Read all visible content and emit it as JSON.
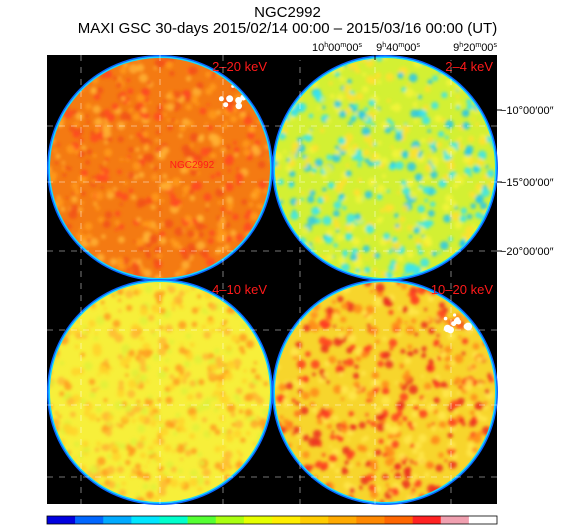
{
  "title": "NGC2992",
  "subtitle": "MAXI GSC 30-days 2015/02/14 00:00 – 2015/03/16 00:00 (UT)",
  "ra_labels": [
    {
      "h": "10",
      "m": "00",
      "s": "00"
    },
    {
      "h": "9",
      "m": "40",
      "s": "00"
    },
    {
      "h": "9",
      "m": "20",
      "s": "00"
    }
  ],
  "dec_labels": [
    "−10°00′00″",
    "−15°00′00″",
    "−20°00′00″"
  ],
  "panels": [
    {
      "band": "2–20 keV",
      "base": "#f47a12",
      "spots": [
        "#ff9a1a",
        "#ff4a22",
        "#f25218",
        "#ffb233"
      ],
      "hot": true,
      "source": "NGC2992"
    },
    {
      "band": "2–4 keV",
      "base": "#d3f033",
      "spots": [
        "#37e6f0",
        "#25c8ee",
        "#f4f53a",
        "#ffe030"
      ],
      "hot": false,
      "source": ""
    },
    {
      "band": "4–10 keV",
      "base": "#f7ef3a",
      "spots": [
        "#ffd42a",
        "#ffb833",
        "#e1f03a",
        "#ff9b1f"
      ],
      "hot": false,
      "source": ""
    },
    {
      "band": "10–20 keV",
      "base": "#f7d52c",
      "spots": [
        "#ff3a22",
        "#ff8a1a",
        "#ffe84a",
        "#ec2b20"
      ],
      "hot": true,
      "source": ""
    }
  ],
  "colorbar": [
    "#0000e0",
    "#0066ff",
    "#00aaff",
    "#00e6ff",
    "#00ffcc",
    "#55ff33",
    "#aaff11",
    "#e6ff00",
    "#ffee00",
    "#ffcc00",
    "#ffaa00",
    "#ff8800",
    "#ff6600",
    "#ff2222",
    "#f0a0b0",
    "#ffffff"
  ]
}
